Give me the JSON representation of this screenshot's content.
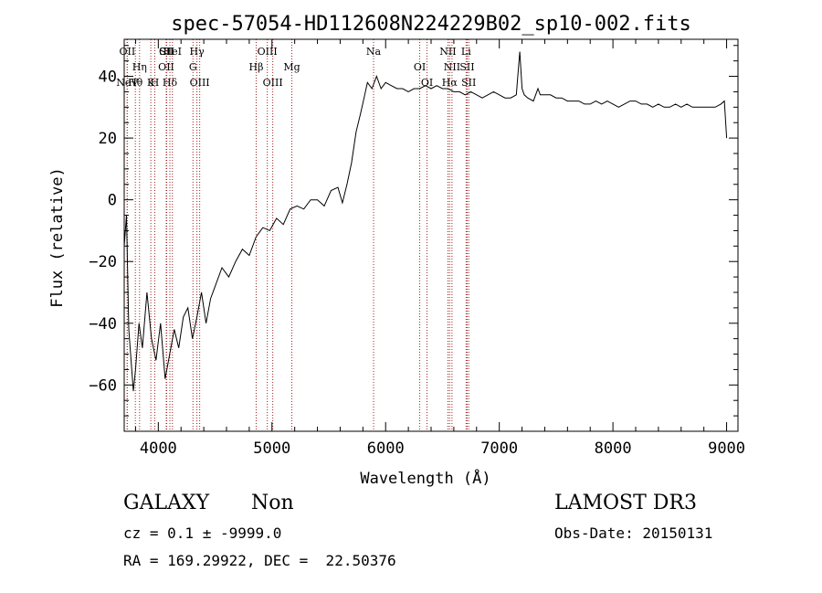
{
  "chart_data": {
    "type": "line",
    "title": "spec-57054-HD112608N224229B02_sp10-002.fits",
    "xlabel": "Wavelength (Å)",
    "ylabel": "Flux (relative)",
    "xlim": [
      3700,
      9100
    ],
    "ylim": [
      -75,
      52
    ],
    "xticks": [
      4000,
      5000,
      6000,
      7000,
      8000,
      9000
    ],
    "yticks": [
      -60,
      -40,
      -20,
      0,
      20,
      40
    ],
    "grid": false,
    "series": [
      {
        "name": "flux",
        "x": [
          3700,
          3720,
          3740,
          3760,
          3780,
          3800,
          3830,
          3860,
          3900,
          3940,
          3980,
          4020,
          4060,
          4100,
          4140,
          4180,
          4220,
          4260,
          4300,
          4340,
          4380,
          4420,
          4460,
          4500,
          4560,
          4620,
          4680,
          4740,
          4800,
          4860,
          4920,
          4980,
          5040,
          5100,
          5160,
          5220,
          5280,
          5340,
          5400,
          5460,
          5520,
          5580,
          5620,
          5660,
          5700,
          5740,
          5780,
          5810,
          5840,
          5880,
          5920,
          5960,
          6000,
          6050,
          6100,
          6150,
          6200,
          6250,
          6300,
          6350,
          6400,
          6450,
          6500,
          6550,
          6600,
          6650,
          6700,
          6750,
          6800,
          6850,
          6900,
          6950,
          7000,
          7050,
          7100,
          7150,
          7180,
          7200,
          7220,
          7250,
          7300,
          7340,
          7360,
          7400,
          7450,
          7500,
          7550,
          7600,
          7650,
          7700,
          7750,
          7800,
          7850,
          7900,
          7950,
          8000,
          8050,
          8100,
          8150,
          8200,
          8250,
          8300,
          8350,
          8400,
          8450,
          8500,
          8550,
          8600,
          8650,
          8700,
          8750,
          8800,
          8850,
          8900,
          8950,
          8980,
          9000
        ],
        "y": [
          -15,
          -5,
          -42,
          -52,
          -62,
          -55,
          -40,
          -48,
          -30,
          -45,
          -52,
          -40,
          -58,
          -50,
          -42,
          -48,
          -38,
          -35,
          -45,
          -38,
          -30,
          -40,
          -32,
          -28,
          -22,
          -25,
          -20,
          -16,
          -18,
          -12,
          -9,
          -10,
          -6,
          -8,
          -3,
          -2,
          -3,
          0,
          0,
          -2,
          3,
          4,
          -1,
          5,
          12,
          22,
          28,
          33,
          38,
          36,
          40,
          36,
          38,
          37,
          36,
          36,
          35,
          36,
          36,
          37,
          36,
          37,
          36,
          36,
          35,
          35,
          34,
          35,
          34,
          33,
          34,
          35,
          34,
          33,
          33,
          34,
          48,
          36,
          34,
          33,
          32,
          36,
          34,
          34,
          34,
          33,
          33,
          32,
          32,
          32,
          31,
          31,
          32,
          31,
          32,
          31,
          30,
          31,
          32,
          32,
          31,
          31,
          30,
          31,
          30,
          30,
          31,
          30,
          31,
          30,
          30,
          30,
          30,
          30,
          31,
          32,
          20
        ]
      }
    ],
    "lines": [
      {
        "name": "NeV",
        "wavelength": 3726,
        "row": 3
      },
      {
        "name": "OII",
        "wavelength": 3727,
        "row": 0
      },
      {
        "name": "OII",
        "wavelength": 4070,
        "row": 1
      },
      {
        "name": "CII",
        "wavelength": 4074,
        "row": 0
      },
      {
        "name": "Hθ",
        "wavelength": 3798,
        "row": 3
      },
      {
        "name": "HeI",
        "wavelength": 4124,
        "row": 0
      },
      {
        "name": "Hη",
        "wavelength": 3835,
        "row": 1
      },
      {
        "name": "K",
        "wavelength": 3934,
        "row": 3
      },
      {
        "name": "H",
        "wavelength": 3969,
        "row": 2
      },
      {
        "name": "SII",
        "wavelength": 4072,
        "row": 0
      },
      {
        "name": "Hδ",
        "wavelength": 4102,
        "row": 3
      },
      {
        "name": "Hγ",
        "wavelength": 4340,
        "row": 0
      },
      {
        "name": "G",
        "wavelength": 4305,
        "row": 1
      },
      {
        "name": "OIII",
        "wavelength": 4364,
        "row": 3
      },
      {
        "name": "OIII",
        "wavelength": 4959,
        "row": 0
      },
      {
        "name": "Hβ",
        "wavelength": 4861,
        "row": 1
      },
      {
        "name": "OIII",
        "wavelength": 5007,
        "row": 3
      },
      {
        "name": "Mg",
        "wavelength": 5175,
        "row": 1
      },
      {
        "name": "Na",
        "wavelength": 5894,
        "row": 0
      },
      {
        "name": "OI",
        "wavelength": 6300,
        "row": 1
      },
      {
        "name": "OI",
        "wavelength": 6364,
        "row": 3
      },
      {
        "name": "NII",
        "wavelength": 6548,
        "row": 0
      },
      {
        "name": "NII",
        "wavelength": 6584,
        "row": 1
      },
      {
        "name": "Hα",
        "wavelength": 6563,
        "row": 3
      },
      {
        "name": "Li",
        "wavelength": 6708,
        "row": 0
      },
      {
        "name": "SII",
        "wavelength": 6717,
        "row": 1
      },
      {
        "name": "SII",
        "wavelength": 6731,
        "row": 3
      }
    ]
  },
  "footer": {
    "class_label": "GALAXY",
    "subclass_label": "Non",
    "survey_label": "LAMOST DR3",
    "cz_line": "cz = 0.1 ± -9999.0",
    "obsdate_line": "Obs-Date: 20150131",
    "radec_line": "RA = 169.29922, DEC =  22.50376"
  }
}
